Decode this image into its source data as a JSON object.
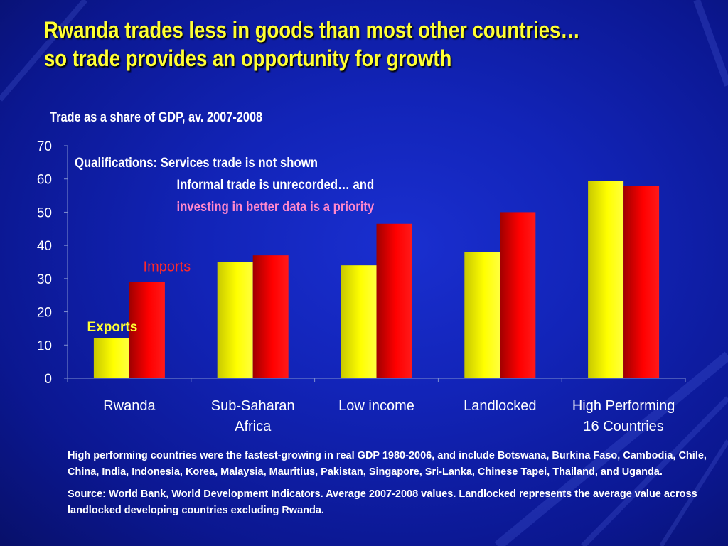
{
  "title": {
    "line1": "Rwanda trades less in goods than most other countries…",
    "line2": "so trade provides an opportunity for growth"
  },
  "qualifications": {
    "line1": "Qualifications:  Services trade is not shown",
    "line2": "Informal trade is unrecorded… and",
    "line3": "investing in better data is a priority"
  },
  "notes": {
    "countries": "High performing countries were the fastest-growing in real GDP 1980-2006, and include Botswana, Burkina Faso, Cambodia, Chile, China, India, Indonesia, Korea, Malaysia, Mauritius, Pakistan, Singapore, Sri-Lanka, Chinese Tapei, Thailand, and Uganda.",
    "source": "Source: World Bank, World Development Indicators. Average 2007-2008 values. Landlocked represents the average value across landlocked developing countries excluding Rwanda."
  },
  "colors": {
    "exports": "#ffff00",
    "imports": "#ff0000",
    "title": "#ffff33",
    "background": "#1224b8"
  },
  "chart_data": {
    "type": "bar",
    "title": "Trade as a share of GDP, av. 2007-2008",
    "categories": [
      [
        "Rwanda"
      ],
      [
        "Sub-Saharan",
        "Africa"
      ],
      [
        "Low income"
      ],
      [
        "Landlocked"
      ],
      [
        "High Performing",
        "16 Countries"
      ]
    ],
    "series": [
      {
        "name": "Exports",
        "values": [
          12,
          35,
          34,
          38,
          59.5
        ]
      },
      {
        "name": "Imports",
        "values": [
          29,
          37,
          46.5,
          50,
          58
        ]
      }
    ],
    "ylim": [
      0,
      70
    ],
    "yticks": [
      0,
      10,
      20,
      30,
      40,
      50,
      60,
      70
    ],
    "xlabel": "",
    "ylabel": "",
    "grid": false,
    "legend": "inline labels above Rwanda bars"
  }
}
